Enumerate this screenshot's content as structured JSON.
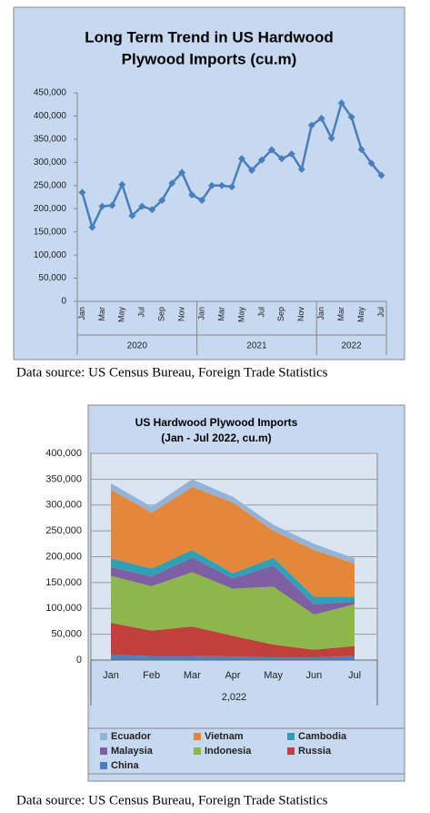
{
  "chart_data": [
    {
      "type": "line",
      "title": [
        "Long Term Trend in US Hardwood",
        "Plywood Imports (cu.m)"
      ],
      "categories": [
        "Jan",
        null,
        "Mar",
        null,
        "May",
        null,
        "Jul",
        null,
        "Sep",
        null,
        "Nov",
        null,
        "Jan",
        null,
        "Mar",
        null,
        "May",
        null,
        "Jul",
        null,
        "Sep",
        null,
        "Nov",
        null,
        "Jan",
        null,
        "Mar",
        null,
        "May",
        null,
        "Jul"
      ],
      "groups": [
        {
          "label": "2020",
          "months": 12
        },
        {
          "label": "2021",
          "months": 12
        },
        {
          "label": "2022",
          "months": 7
        }
      ],
      "values": [
        235000,
        160000,
        205000,
        207000,
        252000,
        185000,
        205000,
        198000,
        218000,
        255000,
        278000,
        230000,
        218000,
        250000,
        250000,
        247000,
        308000,
        283000,
        305000,
        327000,
        308000,
        318000,
        285000,
        380000,
        395000,
        352000,
        428000,
        398000,
        328000,
        298000,
        272000
      ],
      "color": "#4a7ebb",
      "ylim": [
        0,
        450000
      ],
      "yticks": [
        0,
        {
          "value": 50000,
          "label": "50,000"
        },
        {
          "value": 100000,
          "label": "100,000"
        },
        {
          "value": 150000,
          "label": "150,000"
        },
        {
          "value": 200000,
          "label": "200,000"
        },
        {
          "value": 250000,
          "label": "250,000"
        },
        {
          "value": 300000,
          "label": "300,000"
        },
        {
          "value": 350000,
          "label": "350,000"
        },
        {
          "value": 400000,
          "label": "400,000"
        },
        {
          "value": 450000,
          "label": "450,000"
        }
      ],
      "grid": false
    },
    {
      "type": "area",
      "stacked": true,
      "title": [
        "US Hardwood Plywood Imports",
        "(Jan - Jul 2022, cu.m)"
      ],
      "categories": [
        "Jan",
        "Feb",
        "Mar",
        "Apr",
        "May",
        "Jun",
        "Jul"
      ],
      "xlabel": "2,022",
      "series": [
        {
          "name": "China",
          "color": "#4f7fbf",
          "values": [
            10000,
            8000,
            8000,
            7000,
            5000,
            5000,
            8000
          ]
        },
        {
          "name": "Russia",
          "color": "#c0413b",
          "values": [
            62000,
            49000,
            57000,
            40000,
            25000,
            15000,
            19000
          ]
        },
        {
          "name": "Indonesia",
          "color": "#8db74c",
          "values": [
            91000,
            86000,
            105000,
            91000,
            112000,
            68000,
            81000
          ]
        },
        {
          "name": "Malaysia",
          "color": "#7e5fa1",
          "values": [
            17000,
            19000,
            28000,
            20000,
            41000,
            20000,
            5000
          ]
        },
        {
          "name": "Cambodia",
          "color": "#31a0b4",
          "values": [
            17000,
            15000,
            15000,
            10000,
            15000,
            15000,
            10000
          ]
        },
        {
          "name": "Vietnam",
          "color": "#e3873b",
          "values": [
            133000,
            108000,
            122000,
            137000,
            52000,
            90000,
            64000
          ]
        },
        {
          "name": "Ecuador",
          "color": "#95b3d7",
          "values": [
            12000,
            12000,
            15000,
            11000,
            12000,
            12000,
            10000
          ]
        }
      ],
      "ylim": [
        0,
        400000
      ],
      "yticks": [
        0,
        {
          "value": 50000,
          "label": "50,000"
        },
        {
          "value": 100000,
          "label": "100,000"
        },
        {
          "value": 150000,
          "label": "150,000"
        },
        {
          "value": 200000,
          "label": "200,000"
        },
        {
          "value": 250000,
          "label": "250,000"
        },
        {
          "value": 300000,
          "label": "300,000"
        },
        {
          "value": 350000,
          "label": "350,000"
        },
        {
          "value": 400000,
          "label": "400,000"
        }
      ],
      "grid": true,
      "legend": "bottom"
    }
  ],
  "captions": [
    "Data source: US Census Bureau, Foreign Trade Statistics",
    "Data source: US Census Bureau, Foreign Trade Statistics"
  ]
}
